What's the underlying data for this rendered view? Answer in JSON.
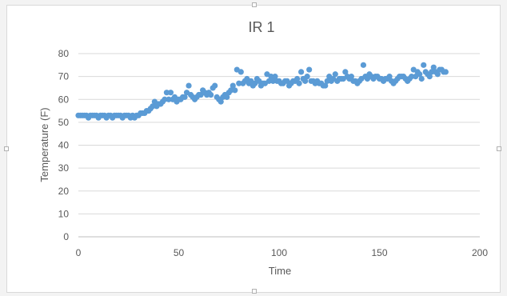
{
  "chart_data": {
    "type": "scatter",
    "title": "IR 1",
    "xlabel": "Time",
    "ylabel": "Temperature (F)",
    "xlim": [
      0,
      200
    ],
    "ylim": [
      0,
      80
    ],
    "x_ticks": [
      "0",
      "50",
      "100",
      "150",
      "200"
    ],
    "y_ticks": [
      "0",
      "10",
      "20",
      "30",
      "40",
      "50",
      "60",
      "70",
      "80"
    ],
    "grid": "horizontal",
    "legend": "none",
    "marker_color": "#5b9bd5",
    "series": [
      {
        "x": [
          0,
          1,
          2,
          3,
          4,
          5,
          6,
          7,
          8,
          9,
          10,
          11,
          12,
          13,
          14,
          15,
          16,
          17,
          18,
          19,
          20,
          21,
          22,
          23,
          24,
          25,
          26,
          27,
          28,
          29,
          30,
          31,
          32,
          33,
          34,
          35,
          36,
          37,
          38,
          39,
          40,
          41,
          42,
          43,
          44,
          45,
          46,
          47,
          48,
          49,
          50,
          51,
          52,
          53,
          54,
          55,
          56,
          57,
          58,
          59,
          60,
          61,
          62,
          63,
          64,
          65,
          66,
          67,
          68,
          69,
          70,
          71,
          72,
          73,
          74,
          75,
          76,
          77,
          78,
          79,
          80,
          81,
          82,
          83,
          84,
          85,
          86,
          87,
          88,
          89,
          90,
          91,
          92,
          93,
          94,
          95,
          96,
          97,
          98,
          99,
          100,
          101,
          102,
          103,
          104,
          105,
          106,
          107,
          108,
          109,
          110,
          111,
          112,
          113,
          114,
          115,
          116,
          117,
          118,
          119,
          120,
          121,
          122,
          123,
          124,
          125,
          126,
          127,
          128,
          129,
          130,
          131,
          132,
          133,
          134,
          135,
          136,
          137,
          138,
          139,
          140,
          141,
          142,
          143,
          144,
          145,
          146,
          147,
          148,
          149,
          150,
          151,
          152,
          153,
          154,
          155,
          156,
          157,
          158,
          159,
          160,
          161,
          162,
          163,
          164,
          165,
          166,
          167,
          168,
          169,
          170,
          171,
          172,
          173,
          174,
          175,
          176,
          177,
          178,
          179,
          180,
          181,
          182,
          183
        ],
        "y": [
          53,
          53,
          53,
          53,
          53,
          52,
          53,
          53,
          53,
          53,
          52,
          53,
          53,
          53,
          52,
          53,
          53,
          52,
          53,
          53,
          53,
          53,
          52,
          53,
          53,
          53,
          52,
          53,
          52,
          53,
          53,
          54,
          54,
          54,
          55,
          55,
          56,
          57,
          59,
          57,
          58,
          58,
          59,
          60,
          63,
          60,
          63,
          60,
          61,
          59,
          60,
          60,
          61,
          61,
          63,
          66,
          62,
          61,
          60,
          61,
          62,
          62,
          64,
          63,
          62,
          63,
          62,
          65,
          66,
          61,
          60,
          59,
          61,
          62,
          61,
          63,
          64,
          66,
          64,
          73,
          67,
          72,
          67,
          68,
          69,
          67,
          68,
          66,
          67,
          69,
          68,
          66,
          67,
          67,
          71,
          68,
          70,
          68,
          70,
          68,
          68,
          67,
          67,
          68,
          68,
          66,
          67,
          68,
          68,
          69,
          67,
          72,
          69,
          68,
          70,
          73,
          68,
          68,
          67,
          68,
          67,
          67,
          66,
          66,
          68,
          70,
          68,
          69,
          71,
          68,
          69,
          69,
          69,
          72,
          70,
          69,
          70,
          68,
          68,
          67,
          68,
          69,
          75,
          70,
          69,
          71,
          70,
          69,
          70,
          70,
          69,
          69,
          68,
          69,
          69,
          70,
          68,
          67,
          68,
          69,
          70,
          70,
          70,
          69,
          68,
          69,
          70,
          73,
          70,
          72,
          71,
          69,
          75,
          72,
          71,
          70,
          72,
          74,
          72,
          71,
          73,
          73,
          72,
          72
        ]
      }
    ]
  }
}
